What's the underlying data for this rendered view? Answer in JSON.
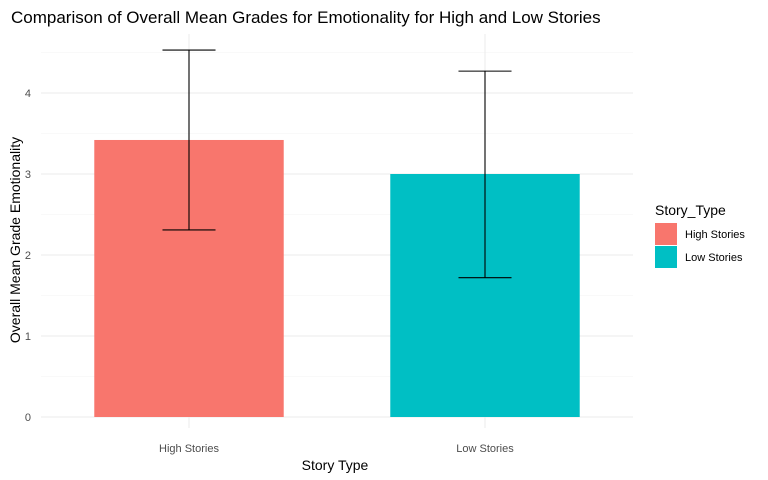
{
  "chart_data": {
    "type": "bar",
    "title": "Comparison of Overall Mean Grades for Emotionality for High and Low Stories",
    "xlabel": "Story Type",
    "ylabel": "Overall Mean Grade Emotionality",
    "categories": [
      "High Stories",
      "Low Stories"
    ],
    "values": [
      3.42,
      3.0
    ],
    "error_bars": [
      {
        "low": 2.31,
        "high": 4.53
      },
      {
        "low": 1.72,
        "high": 4.27
      }
    ],
    "colors": [
      "#F8766D",
      "#00BFC4"
    ],
    "yticks": [
      "0",
      "1",
      "2",
      "3",
      "4"
    ],
    "ylim": [
      0,
      4.6
    ],
    "grid": true,
    "legend": {
      "title": "Story_Type",
      "position": "right",
      "entries": [
        "High Stories",
        "Low Stories"
      ]
    }
  }
}
